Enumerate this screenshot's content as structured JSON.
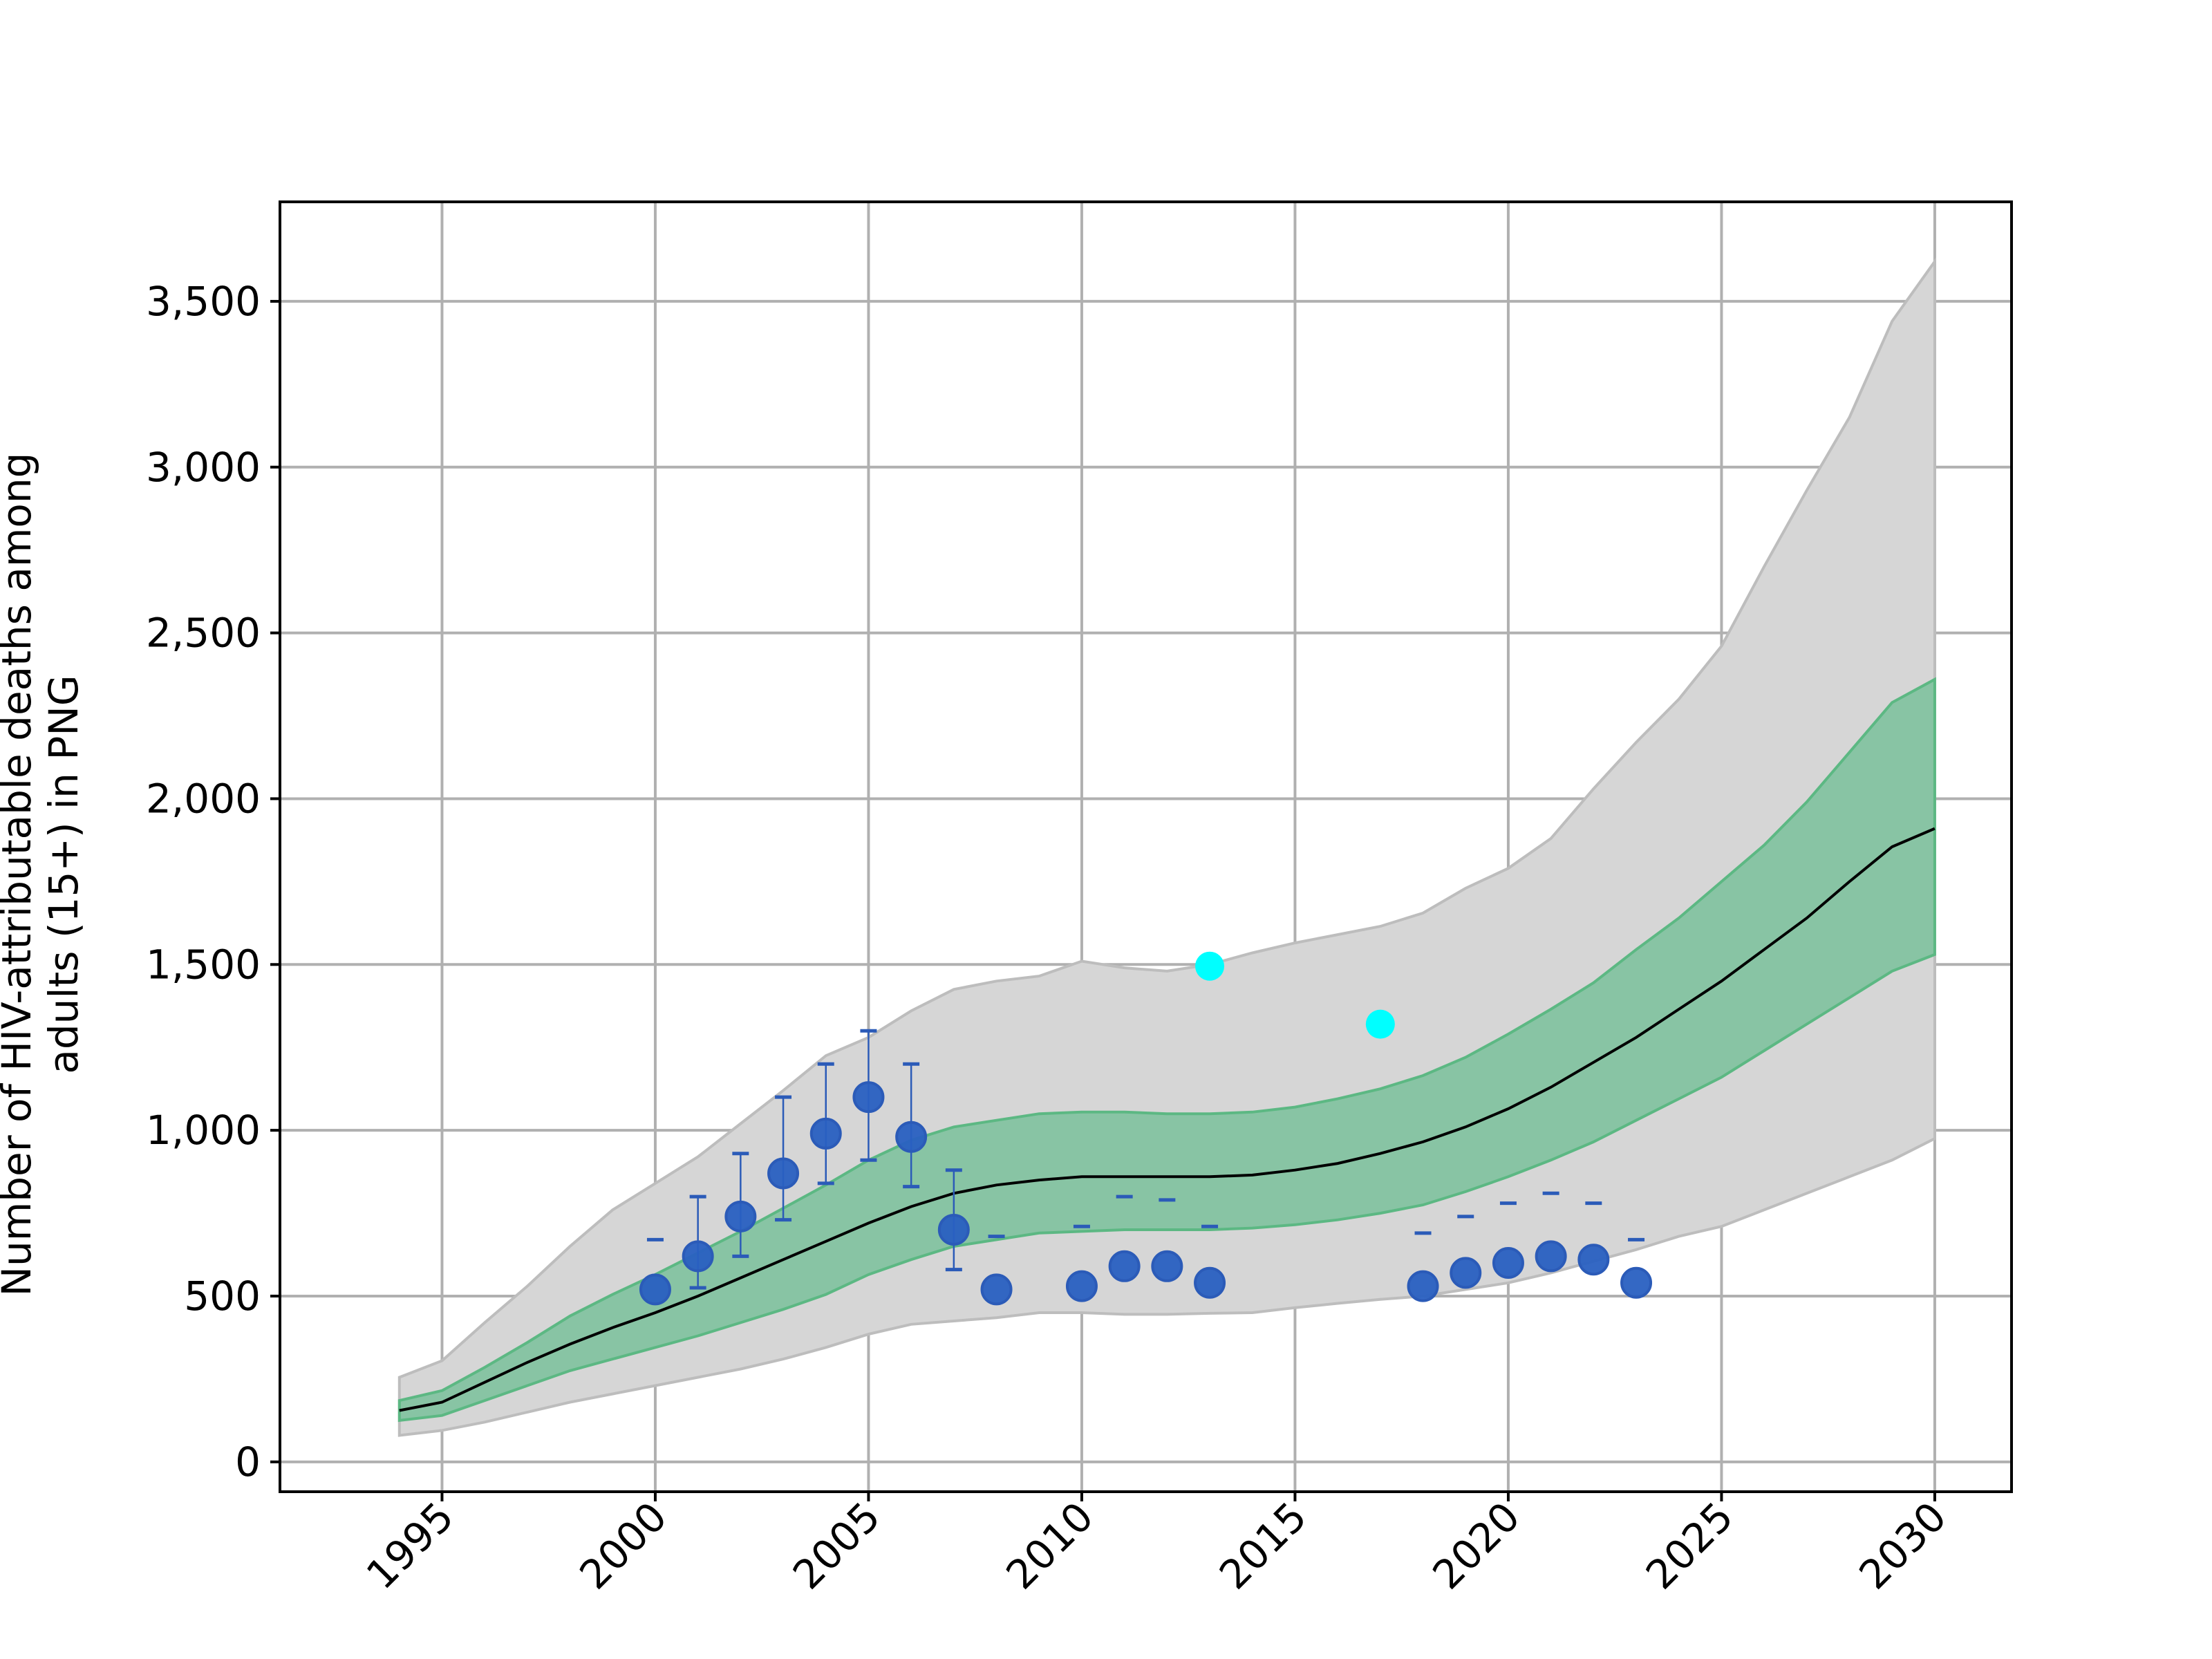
{
  "chart_data": {
    "type": "line",
    "title": "",
    "xlabel": "",
    "ylabel_lines": [
      "Number of HIV-attributable deaths among",
      "adults (15+) in PNG"
    ],
    "xlim": [
      1991.2,
      2031.8
    ],
    "ylim": [
      -90,
      3800
    ],
    "x_ticks": [
      1995,
      2000,
      2005,
      2010,
      2015,
      2020,
      2025,
      2030
    ],
    "x_tick_labels": [
      "1995",
      "2000",
      "2005",
      "2010",
      "2015",
      "2020",
      "2025",
      "2030"
    ],
    "y_ticks": [
      0,
      500,
      1000,
      1500,
      2000,
      2500,
      3000,
      3500
    ],
    "y_tick_labels": [
      "0",
      "500",
      "1,000",
      "1,500",
      "2,000",
      "2,500",
      "3,000",
      "3,500"
    ],
    "grid": true,
    "colors": {
      "outer_band": "#d6d6d6",
      "outer_band_edge": "#bdbdbd",
      "inner_band": "#88c4a4",
      "inner_band_edge": "#5cb883",
      "median_line": "#000000",
      "data_points": "#2960c1",
      "data_points_edge": "#2b5bb8",
      "highlight_points": "#00ffff",
      "grid": "#b0b0b0"
    },
    "x": [
      1994,
      1995,
      1996,
      1997,
      1998,
      1999,
      2000,
      2001,
      2002,
      2003,
      2004,
      2005,
      2006,
      2007,
      2008,
      2009,
      2010,
      2011,
      2012,
      2013,
      2014,
      2015,
      2016,
      2017,
      2018,
      2019,
      2020,
      2021,
      2022,
      2023,
      2024,
      2025,
      2026,
      2027,
      2028,
      2029,
      2030
    ],
    "outer_lower": [
      80,
      95,
      120,
      150,
      180,
      205,
      230,
      255,
      280,
      310,
      345,
      385,
      415,
      425,
      435,
      450,
      450,
      445,
      445,
      448,
      450,
      465,
      478,
      490,
      500,
      520,
      540,
      570,
      605,
      640,
      680,
      710,
      760,
      810,
      860,
      910,
      975
    ],
    "outer_upper": [
      255,
      305,
      420,
      530,
      650,
      760,
      840,
      920,
      1020,
      1120,
      1225,
      1280,
      1360,
      1425,
      1450,
      1465,
      1510,
      1490,
      1480,
      1500,
      1535,
      1565,
      1590,
      1615,
      1655,
      1730,
      1790,
      1880,
      2030,
      2170,
      2300,
      2460,
      2700,
      2930,
      3150,
      3440,
      3620
    ],
    "inner_lower": [
      125,
      140,
      185,
      230,
      275,
      310,
      345,
      380,
      420,
      460,
      505,
      565,
      610,
      650,
      670,
      690,
      695,
      700,
      700,
      700,
      705,
      715,
      730,
      750,
      775,
      815,
      860,
      910,
      965,
      1030,
      1095,
      1160,
      1240,
      1320,
      1400,
      1480,
      1530
    ],
    "inner_upper": [
      185,
      215,
      285,
      360,
      440,
      505,
      565,
      630,
      695,
      765,
      835,
      910,
      970,
      1010,
      1030,
      1050,
      1055,
      1055,
      1050,
      1050,
      1055,
      1070,
      1095,
      1125,
      1165,
      1220,
      1290,
      1365,
      1445,
      1545,
      1640,
      1750,
      1860,
      1990,
      2140,
      2290,
      2360
    ],
    "median": [
      155,
      180,
      240,
      300,
      355,
      405,
      450,
      500,
      555,
      610,
      665,
      720,
      770,
      810,
      835,
      850,
      860,
      860,
      860,
      860,
      865,
      880,
      900,
      930,
      965,
      1010,
      1065,
      1130,
      1205,
      1280,
      1365,
      1450,
      1545,
      1640,
      1750,
      1855,
      1910
    ],
    "data_points": {
      "x": [
        2000,
        2001,
        2002,
        2003,
        2004,
        2005,
        2006,
        2007,
        2008,
        2010,
        2011,
        2012,
        2013,
        2018,
        2019,
        2020,
        2021,
        2022,
        2023
      ],
      "y": [
        520,
        620,
        740,
        870,
        990,
        1100,
        980,
        700,
        520,
        530,
        590,
        590,
        540,
        530,
        570,
        600,
        620,
        610,
        540
      ],
      "err_lower": [
        null,
        525,
        620,
        730,
        840,
        910,
        830,
        580,
        null,
        null,
        null,
        null,
        null,
        null,
        null,
        null,
        null,
        null,
        null
      ],
      "err_upper": [
        670,
        800,
        930,
        1100,
        1200,
        1300,
        1200,
        880,
        680,
        710,
        800,
        790,
        710,
        690,
        740,
        780,
        810,
        780,
        670
      ]
    },
    "highlight_points": {
      "x": [
        2013,
        2017
      ],
      "y": [
        1495,
        1320
      ]
    }
  }
}
